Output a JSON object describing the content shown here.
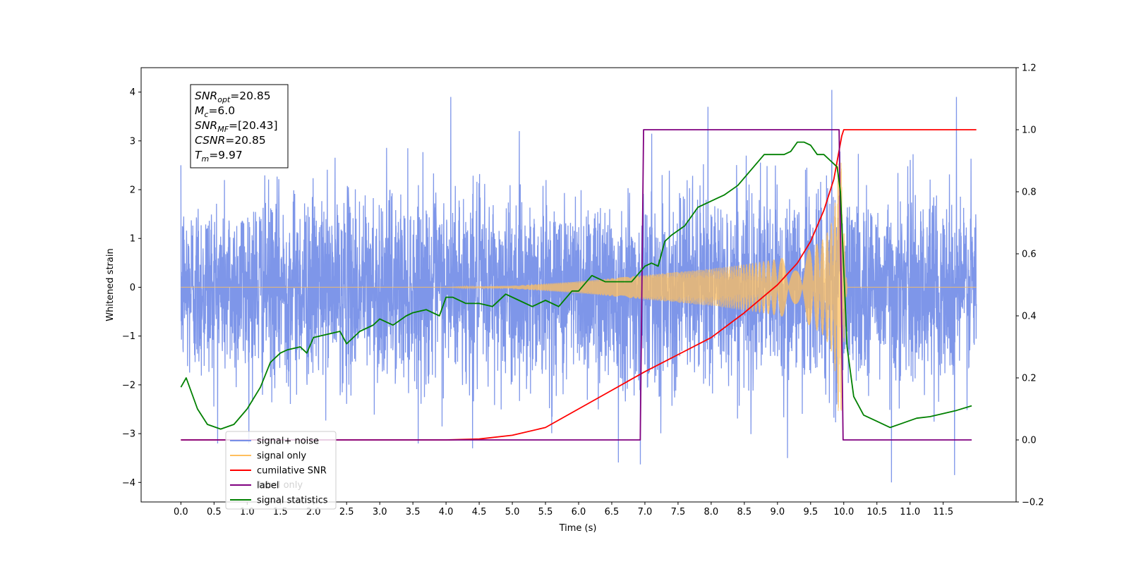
{
  "chart_data": {
    "type": "line",
    "xlabel": "Time (s)",
    "ylabel": "Whitened strain",
    "xlim": [
      -0.6,
      12.6
    ],
    "ylim": [
      -4.4,
      4.5
    ],
    "y2lim": [
      -0.2,
      1.2
    ],
    "x_ticks": [
      "0.0",
      "0.5",
      "1.0",
      "1.5",
      "2.0",
      "2.5",
      "3.0",
      "3.5",
      "4.0",
      "4.5",
      "5.0",
      "5.5",
      "6.0",
      "6.5",
      "7.0",
      "7.5",
      "8.0",
      "8.5",
      "9.0",
      "9.5",
      "10.0",
      "10.5",
      "11.0",
      "11.5"
    ],
    "y_ticks": [
      "4",
      "3",
      "2",
      "1",
      "0",
      "−1",
      "−2",
      "−3",
      "−4"
    ],
    "y2_ticks": [
      "1.2",
      "1.0",
      "0.8",
      "0.6",
      "0.4",
      "0.2",
      "0.0",
      "−0.2"
    ],
    "annotation": {
      "lines": [
        {
          "base": "SNR",
          "sub": "opt",
          "rest": "=20.85"
        },
        {
          "base": "M",
          "sub": "c",
          "rest": "=6.0"
        },
        {
          "base": "SNR",
          "sub": "MF",
          "rest": "=[20.43]"
        },
        {
          "base": "CSNR",
          "sub": "",
          "rest": "=20.85"
        },
        {
          "base": "T",
          "sub": "m",
          "rest": "=9.97"
        }
      ]
    },
    "legend": {
      "placement": "lower-left",
      "entries": [
        {
          "label": "signal+ noise",
          "color": "#7790e8"
        },
        {
          "label": "signal only",
          "color": "#ffbf5e"
        },
        {
          "label": "cumilative SNR",
          "color": "#ff0000"
        },
        {
          "label": "label",
          "color": "#800080"
        },
        {
          "label": "signal statistics",
          "color": "#008000"
        }
      ],
      "hidden_text": [
        "label only"
      ]
    },
    "series": [
      {
        "name": "signal+ noise",
        "axis": "left",
        "color": "#7790e8",
        "description": "white noise, std ~1, x 0.0 to 12.0",
        "x_range": [
          0.0,
          12.0
        ],
        "noise_std": 1.0,
        "peaks": [
          [
            0.0,
            2.5
          ],
          [
            4.07,
            3.9
          ],
          [
            7.95,
            3.8
          ],
          [
            9.82,
            4.1
          ],
          [
            11.7,
            3.9
          ],
          [
            10.72,
            -4.0
          ],
          [
            11.67,
            -3.85
          ],
          [
            9.15,
            -3.75
          ],
          [
            6.93,
            -3.7
          ],
          [
            4.4,
            -3.3
          ],
          [
            6.6,
            -3.6
          ]
        ]
      },
      {
        "name": "signal only",
        "axis": "left",
        "color": "#ffbf5e",
        "description": "chirp, amplitude grows to merger at Tm=9.97",
        "envelope": [
          [
            0.0,
            0.0
          ],
          [
            4.0,
            0.0
          ],
          [
            5.0,
            0.03
          ],
          [
            6.0,
            0.12
          ],
          [
            7.0,
            0.25
          ],
          [
            8.0,
            0.38
          ],
          [
            8.5,
            0.47
          ],
          [
            9.0,
            0.58
          ],
          [
            9.3,
            0.67
          ],
          [
            9.5,
            0.79
          ],
          [
            9.7,
            1.0
          ],
          [
            9.8,
            1.25
          ],
          [
            9.86,
            1.6
          ],
          [
            9.9,
            2.3
          ],
          [
            9.95,
            3.0
          ],
          [
            9.99,
            1.5
          ],
          [
            10.05,
            0.0
          ],
          [
            12.0,
            0.0
          ]
        ]
      },
      {
        "name": "cumilative SNR",
        "axis": "right",
        "color": "#ff0000",
        "x": [
          0.0,
          4.0,
          4.5,
          5.0,
          5.5,
          6.0,
          6.5,
          7.0,
          7.5,
          8.0,
          8.5,
          9.0,
          9.3,
          9.5,
          9.7,
          9.85,
          9.97,
          10.0,
          12.0
        ],
        "values": [
          0.0,
          0.0,
          0.003,
          0.015,
          0.04,
          0.1,
          0.16,
          0.22,
          0.275,
          0.33,
          0.41,
          0.5,
          0.57,
          0.64,
          0.74,
          0.84,
          0.98,
          1.0,
          1.0
        ]
      },
      {
        "name": "label",
        "axis": "right",
        "color": "#800080",
        "x": [
          0.0,
          6.93,
          6.98,
          9.93,
          9.99,
          11.93
        ],
        "values": [
          0.0,
          0.0,
          1.0,
          1.0,
          0.0,
          0.0
        ]
      },
      {
        "name": "signal statistics",
        "axis": "right",
        "color": "#008000",
        "x": [
          0.0,
          0.08,
          0.25,
          0.4,
          0.6,
          0.8,
          1.0,
          1.2,
          1.35,
          1.5,
          1.6,
          1.8,
          1.9,
          2.0,
          2.2,
          2.4,
          2.5,
          2.7,
          2.9,
          3.0,
          3.2,
          3.4,
          3.5,
          3.7,
          3.9,
          4.0,
          4.1,
          4.3,
          4.5,
          4.7,
          4.9,
          5.1,
          5.3,
          5.5,
          5.7,
          5.9,
          6.0,
          6.2,
          6.4,
          6.6,
          6.8,
          7.0,
          7.1,
          7.2,
          7.3,
          7.4,
          7.6,
          7.8,
          8.0,
          8.2,
          8.4,
          8.6,
          8.8,
          9.0,
          9.1,
          9.2,
          9.3,
          9.4,
          9.5,
          9.6,
          9.7,
          9.8,
          9.9,
          9.95,
          10.05,
          10.15,
          10.3,
          10.5,
          10.7,
          10.9,
          11.1,
          11.3,
          11.5,
          11.7,
          11.93
        ],
        "values": [
          0.17,
          0.2,
          0.1,
          0.05,
          0.035,
          0.05,
          0.1,
          0.17,
          0.25,
          0.28,
          0.29,
          0.3,
          0.28,
          0.33,
          0.34,
          0.35,
          0.31,
          0.35,
          0.37,
          0.39,
          0.37,
          0.4,
          0.41,
          0.42,
          0.4,
          0.46,
          0.46,
          0.44,
          0.44,
          0.43,
          0.47,
          0.45,
          0.43,
          0.45,
          0.43,
          0.48,
          0.48,
          0.53,
          0.51,
          0.51,
          0.51,
          0.56,
          0.57,
          0.56,
          0.64,
          0.66,
          0.69,
          0.75,
          0.77,
          0.79,
          0.82,
          0.87,
          0.92,
          0.92,
          0.92,
          0.93,
          0.96,
          0.96,
          0.95,
          0.92,
          0.92,
          0.9,
          0.88,
          0.8,
          0.3,
          0.14,
          0.08,
          0.06,
          0.04,
          0.055,
          0.07,
          0.075,
          0.085,
          0.095,
          0.11
        ]
      }
    ]
  }
}
